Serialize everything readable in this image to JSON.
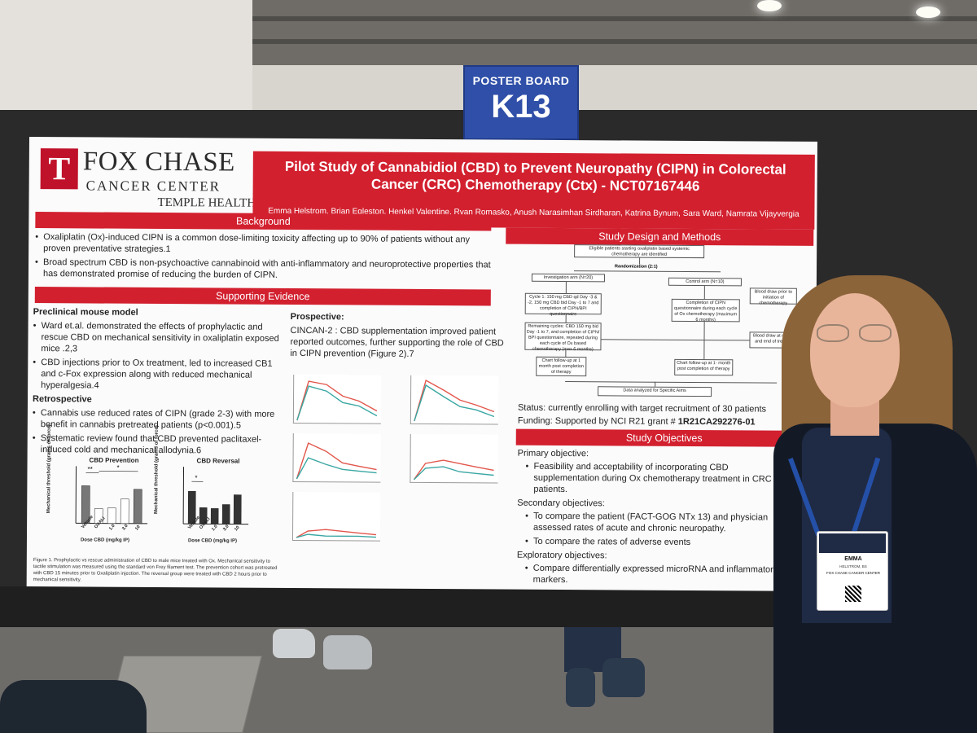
{
  "sign": {
    "label": "POSTER BOARD",
    "number": "K13"
  },
  "logo": {
    "name": "FOX CHASE",
    "sub": "CANCER CENTER",
    "parent": "TEMPLE HEALTH"
  },
  "title": "Pilot Study of Cannabidiol (CBD) to Prevent Neuropathy (CIPN) in Colorectal Cancer (CRC) Chemotherapy (Ctx) - NCT07167446",
  "authors": "Emma Helstrom, Brian Egleston, Henkel Valentine, Ryan Romasko, Anush Narasimhan Sirdharan, Katrina Bynum, Sara Ward, Namrata Vijayvergia",
  "background": {
    "heading": "Background",
    "bullets": [
      "Oxaliplatin (Ox)-induced CIPN is a common dose-limiting toxicity affecting up to 90% of patients without any proven preventative strategies.1",
      "Broad spectrum CBD is non-psychoactive cannabinoid with anti-inflammatory and neuroprotective properties that has demonstrated promise of reducing the burden of CIPN."
    ]
  },
  "evidence": {
    "heading": "Supporting Evidence",
    "preclinical_head": "Preclinical mouse model",
    "preclinical": [
      "Ward et.al. demonstrated the effects of prophylactic and rescue CBD on mechanical sensitivity in oxaliplatin exposed mice .2,3",
      "CBD injections prior to Ox treatment, led to increased CB1 and c-Fox expression along with reduced mechanical hyperalgesia.4"
    ],
    "retro_head": "Retrospective",
    "retro": [
      "Cannabis use reduced rates of CIPN (grade 2-3) with more benefit in cannabis pretreated patients (p<0.001).5",
      "Systematic review found that CBD prevented paclitaxel-induced cold and mechanical allodynia.6"
    ],
    "prospective_head": "Prospective:",
    "prospective": "CINCAN-2 : CBD supplementation improved patient reported outcomes, further supporting the role of CBD in CIPN prevention (Figure 2).7"
  },
  "charts": {
    "prevention_title": "CBD Prevention",
    "reversal_title": "CBD Reversal",
    "ylabel": "Mechanical threshold (grams of force)",
    "xlabel": "Dose CBD (mg/kg IP)",
    "prevention_categories": [
      "Vehicle",
      "OXALI",
      "1.0",
      "3.0",
      "10"
    ],
    "reversal_categories": [
      "Vehicle",
      "OXALI",
      "1.0",
      "3.0",
      "10"
    ],
    "prevention_sig": [
      "**",
      "*"
    ],
    "reversal_sig": [
      "*"
    ]
  },
  "figure1_caption": "Figure 1. Prophylactic vs rescue administration of CBD to male mice treated with Ox. Mechanical sensitivity to tactile stimulation was measured using the standard von Frey filament test. The prevention cohort was pretreated with CBD 15 minutes prior to Oxaliplatin injection. The reversal group were treated with CBD 2 hours prior to mechanical sensitivity.",
  "design": {
    "heading": "Study Design and Methods",
    "flow": {
      "eligible": "Eligible patients starting oxaliplatin based systemic chemotherapy are identified",
      "randomization": "Randomization (2:1)",
      "investigation": "Investigation arm (N=20)",
      "control": "Control arm (N=10)",
      "blood1": "Blood draw prior to initiation of chemotherapy",
      "cycle1": "Cycle 1: 150 mg CBD qd Day -3 & -2, 150 mg CBD bid Day -1 to 7 and completion of CIPN/BPI questionnaire",
      "completion": "Completion of CIPN questionnaire during each cycle of Ox chemotherapy (maximum 6 months)",
      "remaining": "Remaining cycles: CBD 150 mg bid Day -1 to 7, and completion of CIPN/ BPI questionnaire, repeated during each cycle of Ox based chemotherapy (max 6 months)",
      "blood2": "Blood draw at month 3 and end of treatment",
      "followup1": "Chart follow-up at 1 month post completion of therapy",
      "followup2": "Chart follow-up at 1- month post completion of therapy",
      "analyzed": "Data analyzed for Specific Aims"
    },
    "status": "Status: currently enrolling with target recruitment of 30 patients",
    "funding_prefix": "Funding: Supported by NCI R21 grant # ",
    "funding_grant": "1R21CA292276-01"
  },
  "objectives": {
    "heading": "Study Objectives",
    "primary_head": "Primary objective:",
    "primary": [
      "Feasibility and acceptability of incorporating CBD supplementation during Ox chemotherapy treatment in CRC patients."
    ],
    "secondary_head": "Secondary objectives:",
    "secondary": [
      "To compare the patient (FACT-GOG NTx 13) and physician assessed rates of acute and chronic neuropathy.",
      "To compare the rates of adverse events"
    ],
    "exploratory_head": "Exploratory objectives:",
    "exploratory": [
      "Compare differentially expressed microRNA and inflammatory markers."
    ]
  },
  "badge": {
    "name": "EMMA",
    "sub": "HELSTROM, BS",
    "org": "FOX CHASE CANCER CENTER"
  },
  "colors": {
    "poster_red": "#d2202f",
    "sign_blue": "#2f4fa8"
  }
}
